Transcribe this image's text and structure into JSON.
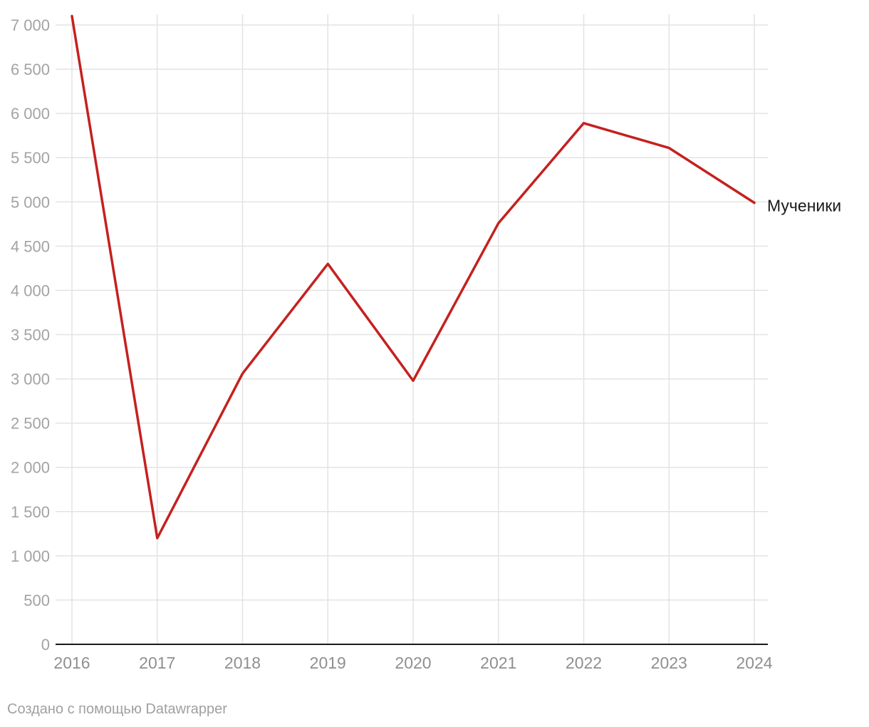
{
  "chart_data": {
    "type": "line",
    "x": [
      "2016",
      "2017",
      "2018",
      "2019",
      "2020",
      "2021",
      "2022",
      "2023",
      "2024"
    ],
    "series": [
      {
        "name": "Мученики",
        "values": [
          7100,
          1200,
          3060,
          4300,
          2980,
          4760,
          5890,
          5610,
          4990
        ],
        "color": "#c4211f"
      }
    ],
    "yticks": [
      0,
      500,
      1000,
      1500,
      2000,
      2500,
      3000,
      3500,
      4000,
      4500,
      5000,
      5500,
      6000,
      6500,
      7000
    ],
    "ytick_labels": [
      "0",
      "500",
      "1 000",
      "1 500",
      "2 000",
      "2 500",
      "3 000",
      "3 500",
      "4 000",
      "4 500",
      "5 000",
      "5 500",
      "6 000",
      "6 500",
      "7 000"
    ],
    "ylim": [
      0,
      7000
    ],
    "grid": true,
    "title": "",
    "xlabel": "",
    "ylabel": ""
  },
  "footer": {
    "credit": "Создано с помощью Datawrapper"
  }
}
